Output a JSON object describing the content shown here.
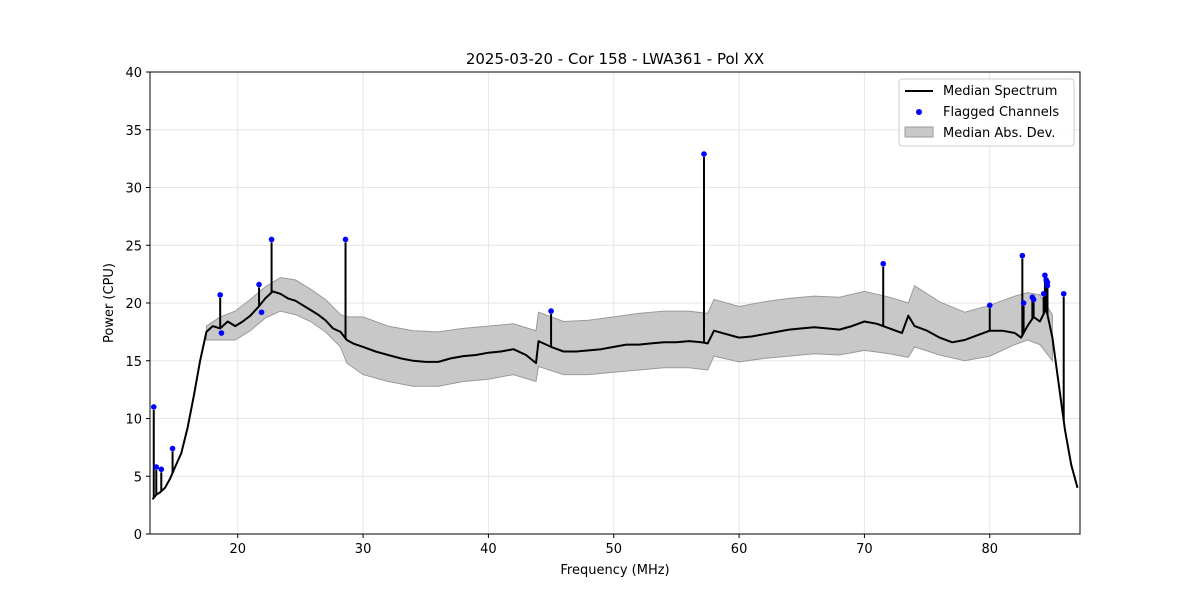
{
  "chart_data": {
    "type": "line",
    "title": "2025-03-20 - Cor 158 - LWA361 - Pol XX",
    "xlabel": "Frequency (MHz)",
    "ylabel": "Power (CPU)",
    "xlim": [
      13.0,
      87.2
    ],
    "ylim": [
      0,
      40
    ],
    "x_ticks": [
      20,
      30,
      40,
      50,
      60,
      70,
      80
    ],
    "y_ticks": [
      0,
      5,
      10,
      15,
      20,
      25,
      30,
      35,
      40
    ],
    "grid": true,
    "legend_position": "top-right",
    "legend": [
      "Median Spectrum",
      "Flagged Channels",
      "Median Abs. Dev."
    ],
    "colors": {
      "median": "#000000",
      "flagged": "#0000ff",
      "mad_fill": "#c8c8c8",
      "mad_edge": "#9a9a9a"
    },
    "series": [
      {
        "name": "Median Spectrum",
        "kind": "line",
        "x": [
          13.2,
          13.5,
          13.8,
          14.2,
          14.6,
          15.0,
          15.5,
          16.0,
          16.5,
          17.0,
          17.5,
          18.0,
          18.6,
          19.2,
          19.8,
          20.4,
          21.0,
          21.6,
          22.2,
          22.8,
          23.4,
          24.0,
          24.6,
          25.2,
          25.8,
          26.4,
          27.0,
          27.6,
          28.2,
          28.7,
          29.2,
          30.0,
          31.0,
          32.0,
          33.0,
          34.0,
          35.0,
          36.0,
          37.0,
          38.0,
          39.0,
          40.0,
          41.0,
          42.0,
          43.0,
          43.8,
          44.0,
          45.0,
          46.0,
          47.0,
          48.0,
          49.0,
          50.0,
          51.0,
          52.0,
          53.0,
          54.0,
          55.0,
          56.0,
          57.0,
          57.5,
          58.0,
          59.0,
          60.0,
          61.0,
          62.0,
          63.0,
          64.0,
          65.0,
          66.0,
          67.0,
          68.0,
          69.0,
          70.0,
          71.0,
          72.0,
          73.0,
          73.5,
          74.0,
          75.0,
          76.0,
          77.0,
          78.0,
          79.0,
          80.0,
          81.0,
          82.0,
          82.5,
          83.0,
          83.5,
          84.0,
          84.5,
          85.0,
          85.5,
          86.0,
          86.5,
          87.0
        ],
        "values": [
          3.0,
          3.4,
          3.6,
          4.0,
          4.8,
          5.8,
          7.0,
          9.2,
          12.0,
          15.0,
          17.5,
          18.0,
          17.8,
          18.4,
          18.0,
          18.4,
          18.9,
          19.6,
          20.4,
          21.0,
          20.8,
          20.4,
          20.2,
          19.8,
          19.4,
          19.0,
          18.5,
          17.8,
          17.5,
          16.8,
          16.5,
          16.2,
          15.8,
          15.5,
          15.2,
          15.0,
          14.9,
          14.9,
          15.2,
          15.4,
          15.5,
          15.7,
          15.8,
          16.0,
          15.5,
          14.8,
          16.7,
          16.2,
          15.8,
          15.8,
          15.9,
          16.0,
          16.2,
          16.4,
          16.4,
          16.5,
          16.6,
          16.6,
          16.7,
          16.6,
          16.5,
          17.6,
          17.3,
          17.0,
          17.1,
          17.3,
          17.5,
          17.7,
          17.8,
          17.9,
          17.8,
          17.7,
          18.0,
          18.4,
          18.2,
          17.8,
          17.4,
          18.9,
          18.0,
          17.6,
          17.0,
          16.6,
          16.8,
          17.2,
          17.6,
          17.6,
          17.4,
          17.0,
          18.0,
          18.8,
          18.4,
          19.5,
          17.0,
          13.0,
          9.0,
          6.0,
          4.0
        ]
      },
      {
        "name": "Median Abs. Dev.",
        "kind": "band",
        "x": [
          17.5,
          18.6,
          19.8,
          21.0,
          22.2,
          23.4,
          24.6,
          25.8,
          27.0,
          28.2,
          28.7,
          30.0,
          32.0,
          34.0,
          36.0,
          38.0,
          40.0,
          42.0,
          43.8,
          44.0,
          46.0,
          48.0,
          50.0,
          52.0,
          54.0,
          56.0,
          57.5,
          58.0,
          60.0,
          62.0,
          64.0,
          66.0,
          68.0,
          70.0,
          72.0,
          73.5,
          74.0,
          76.0,
          78.0,
          80.0,
          82.0,
          83.0,
          84.0,
          85.0
        ],
        "upper": [
          18.0,
          18.8,
          19.3,
          20.3,
          21.4,
          22.2,
          22.0,
          21.2,
          20.3,
          19.0,
          18.8,
          18.8,
          18.0,
          17.6,
          17.5,
          17.8,
          18.0,
          18.2,
          17.6,
          19.2,
          18.4,
          18.5,
          18.8,
          19.1,
          19.3,
          19.3,
          19.1,
          20.3,
          19.7,
          20.1,
          20.4,
          20.6,
          20.5,
          21.0,
          20.5,
          20.0,
          21.5,
          20.1,
          19.2,
          19.8,
          20.6,
          20.9,
          20.7,
          19.0
        ],
        "lower": [
          16.8,
          16.8,
          16.8,
          17.6,
          18.7,
          19.3,
          19.0,
          18.4,
          17.5,
          16.2,
          14.8,
          13.8,
          13.2,
          12.8,
          12.8,
          13.2,
          13.4,
          13.8,
          13.2,
          14.5,
          13.8,
          13.8,
          14.0,
          14.2,
          14.4,
          14.4,
          14.2,
          15.4,
          14.9,
          15.2,
          15.4,
          15.6,
          15.5,
          15.9,
          15.6,
          15.3,
          16.2,
          15.5,
          15.0,
          15.4,
          16.4,
          16.8,
          16.4,
          15.0
        ]
      },
      {
        "name": "Flagged Channels",
        "kind": "scatter",
        "x": [
          13.3,
          13.5,
          13.9,
          14.8,
          18.6,
          18.7,
          21.7,
          21.9,
          22.7,
          28.6,
          45.0,
          57.2,
          71.5,
          80.0,
          82.6,
          82.7,
          83.4,
          83.5,
          84.3,
          84.4,
          84.5,
          84.6,
          84.6,
          85.9
        ],
        "values": [
          11.0,
          5.8,
          5.6,
          7.4,
          20.7,
          17.4,
          21.6,
          19.2,
          25.5,
          25.5,
          19.3,
          32.9,
          23.4,
          19.8,
          24.1,
          20.0,
          20.5,
          20.3,
          20.8,
          22.4,
          22.0,
          21.8,
          21.5,
          20.8
        ]
      }
    ]
  }
}
